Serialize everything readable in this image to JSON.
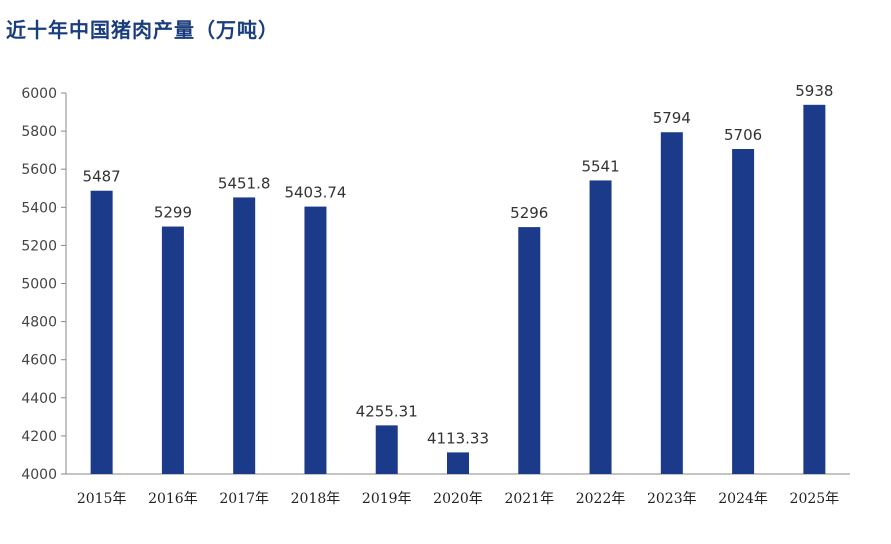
{
  "chart_data": {
    "type": "bar",
    "title": "近十年中国猪肉产量（万吨）",
    "categories": [
      "2015年",
      "2016年",
      "2017年",
      "2018年",
      "2019年",
      "2020年",
      "2021年",
      "2022年",
      "2023年",
      "2024年",
      "2025年"
    ],
    "values": [
      5487,
      5299,
      5451.8,
      5403.74,
      4255.31,
      4113.33,
      5296,
      5541,
      5794,
      5706,
      5938
    ],
    "labels": [
      "5487",
      "5299",
      "5451.8",
      "5403.74",
      "4255.31",
      "4113.33",
      "5296",
      "5541",
      "5794",
      "5706",
      "5938"
    ],
    "ylim": [
      4000,
      6000
    ],
    "yticks": [
      4000,
      4200,
      4400,
      4600,
      4800,
      5000,
      5200,
      5400,
      5600,
      5800,
      6000
    ],
    "xlabel": "",
    "ylabel": "",
    "bar_color": "#1b3a8a",
    "grid": false
  }
}
